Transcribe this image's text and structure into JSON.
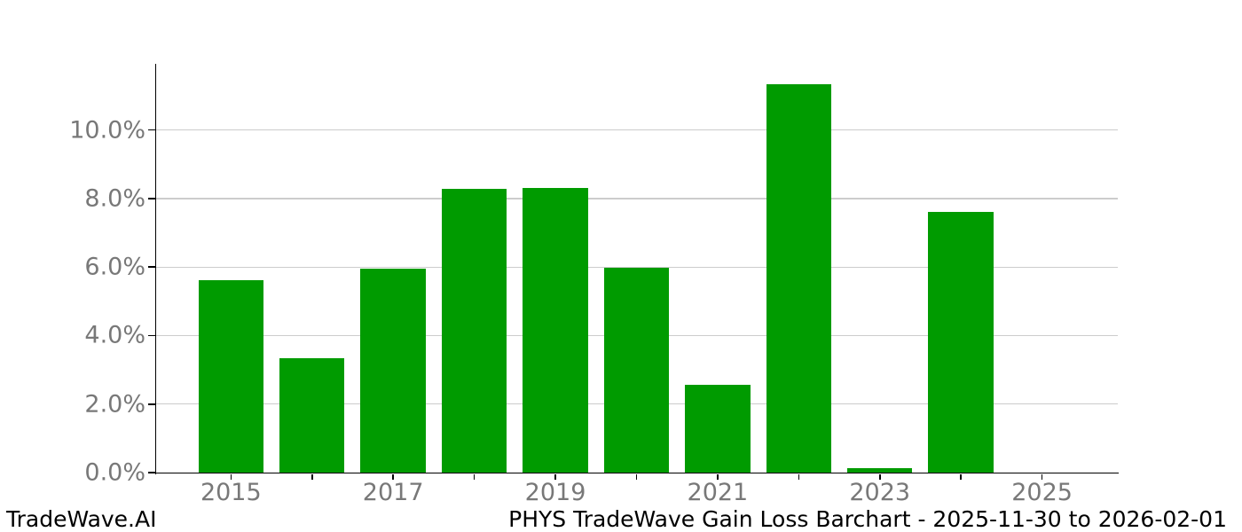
{
  "chart_data": {
    "type": "bar",
    "title": "",
    "categories": [
      "2015",
      "2016",
      "2017",
      "2018",
      "2019",
      "2020",
      "2021",
      "2022",
      "2023",
      "2024",
      "2025"
    ],
    "values": [
      5.61,
      3.33,
      5.95,
      8.27,
      8.3,
      5.97,
      2.57,
      11.34,
      0.13,
      7.62,
      0.0
    ],
    "series_name": "Gain Loss %",
    "x_tick_labels": [
      "2015",
      "2017",
      "2019",
      "2021",
      "2023",
      "2025"
    ],
    "y_ticks": [
      0,
      2,
      4,
      6,
      8,
      10
    ],
    "y_tick_labels": [
      "0.0%",
      "2.0%",
      "4.0%",
      "6.0%",
      "8.0%",
      "10.0%"
    ],
    "ylim": [
      0,
      11.93
    ],
    "xlabel": "",
    "ylabel": "",
    "grid": "horizontal",
    "legend": false,
    "bar_color": "#009b00"
  },
  "colors": {
    "bar": "#009b00",
    "grid": "#cccccc",
    "tick_label": "#787878",
    "spine": "#000000",
    "footer": "#000000",
    "background": "#ffffff"
  },
  "footer": {
    "brand": "TradeWave.AI",
    "title": "PHYS TradeWave Gain Loss Barchart - 2025-11-30 to 2026-02-01"
  }
}
